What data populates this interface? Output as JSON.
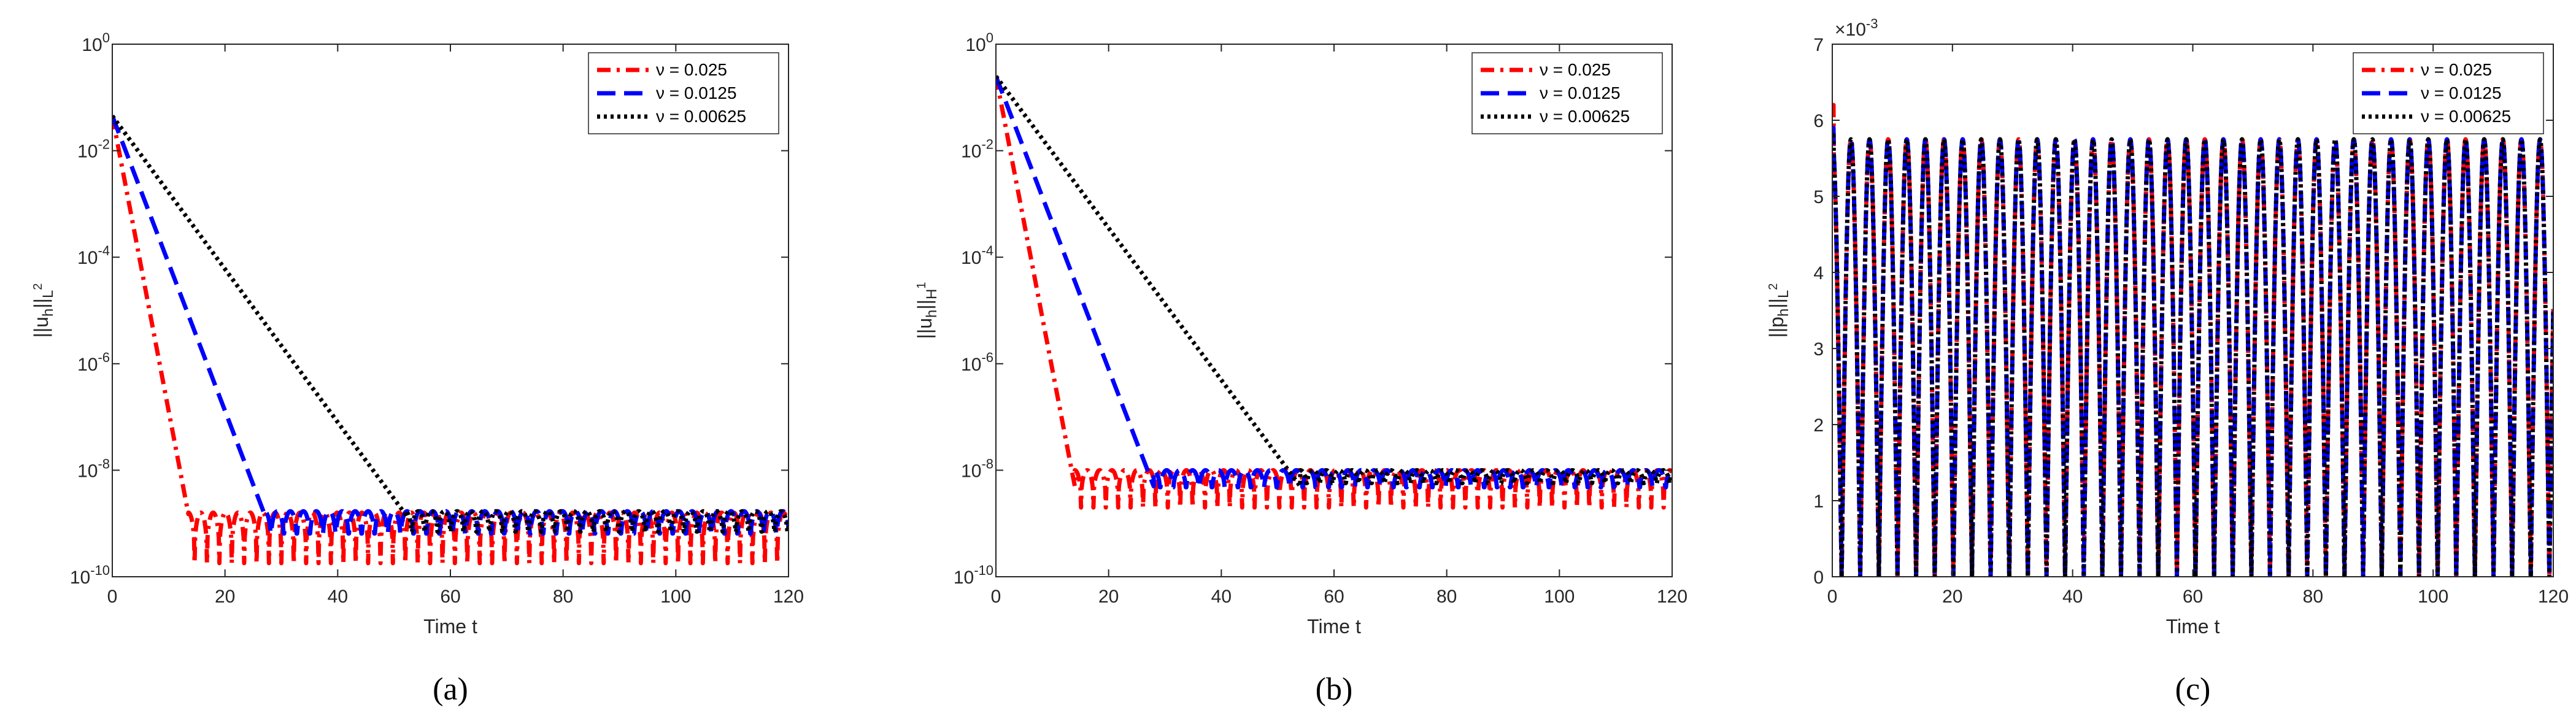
{
  "chart_data": [
    {
      "panel": "a",
      "caption": "(a)",
      "type": "line",
      "xlabel": "Time t",
      "ylabel_base": "||u",
      "ylabel_sub1": "h",
      "ylabel_mid": "||",
      "ylabel_sub2": "L",
      "ylabel_sup": "2",
      "yscale": "log",
      "xlim": [
        0,
        120
      ],
      "ylim": [
        1e-10,
        1
      ],
      "xticks": [
        "0",
        "20",
        "40",
        "60",
        "80",
        "100",
        "120"
      ],
      "yticks": [
        {
          "base": "10",
          "exp": "-10"
        },
        {
          "base": "10",
          "exp": "-8"
        },
        {
          "base": "10",
          "exp": "-6"
        },
        {
          "base": "10",
          "exp": "-4"
        },
        {
          "base": "10",
          "exp": "-2"
        },
        {
          "base": "10",
          "exp": "0"
        }
      ],
      "legend_position": "top-right",
      "series": [
        {
          "name": "ν = 0.025",
          "color": "#ff0000",
          "style": "dashdot",
          "decay": [
            [
              0,
              0.045
            ],
            [
              13.5,
              1.5e-09
            ]
          ],
          "osc": {
            "hi": 1.6e-09,
            "lo": 1.8e-10,
            "period": 2.2
          }
        },
        {
          "name": "ν = 0.0125",
          "color": "#0000ff",
          "style": "dashed",
          "decay": [
            [
              0,
              0.045
            ],
            [
              27,
              1.5e-09
            ]
          ],
          "osc": {
            "hi": 1.7e-09,
            "lo": 3.5e-10,
            "period": 2.3
          }
        },
        {
          "name": "ν = 0.00625",
          "color": "#000000",
          "style": "dotted",
          "decay": [
            [
              0,
              0.045
            ],
            [
              52,
              1.5e-09
            ]
          ],
          "osc": {
            "hi": 1.7e-09,
            "lo": 4e-10,
            "period": 2.3
          }
        }
      ]
    },
    {
      "panel": "b",
      "caption": "(b)",
      "type": "line",
      "xlabel": "Time t",
      "ylabel_base": "||u",
      "ylabel_sub1": "h",
      "ylabel_mid": "||",
      "ylabel_sub2": "H",
      "ylabel_sup": "1",
      "yscale": "log",
      "xlim": [
        0,
        120
      ],
      "ylim": [
        1e-10,
        1
      ],
      "xticks": [
        "0",
        "20",
        "40",
        "60",
        "80",
        "100",
        "120"
      ],
      "yticks": [
        {
          "base": "10",
          "exp": "-10"
        },
        {
          "base": "10",
          "exp": "-8"
        },
        {
          "base": "10",
          "exp": "-6"
        },
        {
          "base": "10",
          "exp": "-4"
        },
        {
          "base": "10",
          "exp": "-2"
        },
        {
          "base": "10",
          "exp": "0"
        }
      ],
      "legend_position": "top-right",
      "series": [
        {
          "name": "ν = 0.025",
          "color": "#ff0000",
          "style": "dashdot",
          "decay": [
            [
              0,
              0.25
            ],
            [
              14,
              5e-09
            ]
          ],
          "osc": {
            "hi": 1e-08,
            "lo": 2e-09,
            "period": 2.2
          }
        },
        {
          "name": "ν = 0.0125",
          "color": "#0000ff",
          "style": "dashed",
          "decay": [
            [
              0,
              0.25
            ],
            [
              28,
              5e-09
            ]
          ],
          "osc": {
            "hi": 1e-08,
            "lo": 3e-09,
            "period": 2.3
          }
        },
        {
          "name": "ν = 0.00625",
          "color": "#000000",
          "style": "dotted",
          "decay": [
            [
              0,
              0.25
            ],
            [
              54,
              5e-09
            ]
          ],
          "osc": {
            "hi": 1e-08,
            "lo": 4e-09,
            "period": 2.3
          }
        }
      ]
    },
    {
      "panel": "c",
      "caption": "(c)",
      "type": "line",
      "xlabel": "Time t",
      "ylabel_base": "||p",
      "ylabel_sub1": "h",
      "ylabel_mid": "||",
      "ylabel_sub2": "L",
      "ylabel_sup": "2",
      "yscale": "linear",
      "multiplier": {
        "base": "×10",
        "exp": "-3"
      },
      "xlim": [
        0,
        120
      ],
      "ylim": [
        0,
        0.007
      ],
      "xticks": [
        "0",
        "20",
        "40",
        "60",
        "80",
        "100",
        "120"
      ],
      "yticks": [
        {
          "base": "0",
          "exp": ""
        },
        {
          "base": "1",
          "exp": ""
        },
        {
          "base": "2",
          "exp": ""
        },
        {
          "base": "3",
          "exp": ""
        },
        {
          "base": "4",
          "exp": ""
        },
        {
          "base": "5",
          "exp": ""
        },
        {
          "base": "6",
          "exp": ""
        },
        {
          "base": "7",
          "exp": ""
        }
      ],
      "legend_position": "top-right",
      "series": [
        {
          "name": "ν = 0.025",
          "color": "#ff0000",
          "style": "dashdot",
          "start": 0.0062,
          "amplitude_max": 0.00575,
          "period": 3.1
        },
        {
          "name": "ν = 0.0125",
          "color": "#0000ff",
          "style": "dashed",
          "start": 0.0059,
          "amplitude_max": 0.00575,
          "period": 3.1
        },
        {
          "name": "ν = 0.00625",
          "color": "#000000",
          "style": "dotted",
          "start": 0.0058,
          "amplitude_max": 0.00575,
          "period": 3.1
        }
      ]
    }
  ]
}
